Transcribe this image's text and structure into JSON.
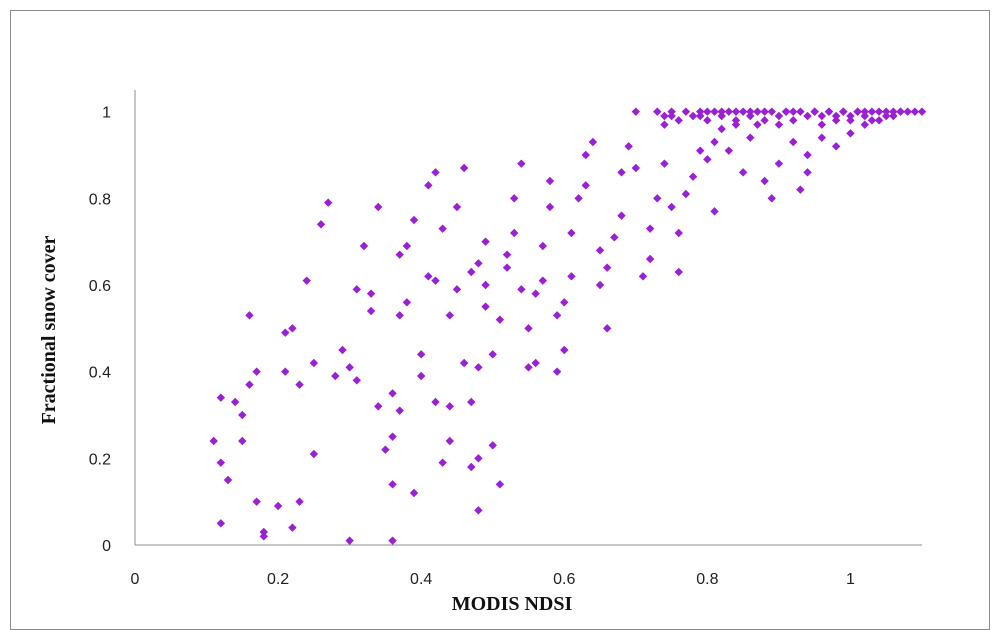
{
  "chart_data": {
    "type": "scatter",
    "xlabel": "MODIS NDSI",
    "ylabel": "Fractional  snow cover",
    "xlim": [
      0,
      1.1
    ],
    "ylim": [
      0,
      1.05
    ],
    "x_ticks": [
      "0",
      "0.2",
      "0.4",
      "0.6",
      "0.8",
      "1"
    ],
    "y_ticks": [
      "0",
      "0.2",
      "0.4",
      "0.6",
      "0.8",
      "1"
    ],
    "grid": false,
    "legend": "none",
    "marker_color": "#9b1fd4",
    "marker": "diamond",
    "points": [
      [
        0.11,
        0.24
      ],
      [
        0.12,
        0.05
      ],
      [
        0.12,
        0.19
      ],
      [
        0.13,
        0.15
      ],
      [
        0.12,
        0.34
      ],
      [
        0.14,
        0.33
      ],
      [
        0.15,
        0.24
      ],
      [
        0.15,
        0.3
      ],
      [
        0.16,
        0.37
      ],
      [
        0.17,
        0.4
      ],
      [
        0.16,
        0.53
      ],
      [
        0.17,
        0.1
      ],
      [
        0.18,
        0.03
      ],
      [
        0.18,
        0.02
      ],
      [
        0.2,
        0.09
      ],
      [
        0.21,
        0.4
      ],
      [
        0.21,
        0.49
      ],
      [
        0.22,
        0.5
      ],
      [
        0.23,
        0.37
      ],
      [
        0.23,
        0.1
      ],
      [
        0.22,
        0.04
      ],
      [
        0.24,
        0.61
      ],
      [
        0.25,
        0.21
      ],
      [
        0.25,
        0.42
      ],
      [
        0.26,
        0.74
      ],
      [
        0.27,
        0.79
      ],
      [
        0.28,
        0.39
      ],
      [
        0.29,
        0.45
      ],
      [
        0.3,
        0.41
      ],
      [
        0.31,
        0.38
      ],
      [
        0.31,
        0.59
      ],
      [
        0.3,
        0.01
      ],
      [
        0.32,
        0.69
      ],
      [
        0.33,
        0.54
      ],
      [
        0.33,
        0.58
      ],
      [
        0.34,
        0.78
      ],
      [
        0.34,
        0.32
      ],
      [
        0.35,
        0.22
      ],
      [
        0.36,
        0.01
      ],
      [
        0.36,
        0.14
      ],
      [
        0.36,
        0.25
      ],
      [
        0.37,
        0.31
      ],
      [
        0.36,
        0.35
      ],
      [
        0.37,
        0.53
      ],
      [
        0.37,
        0.67
      ],
      [
        0.38,
        0.69
      ],
      [
        0.38,
        0.56
      ],
      [
        0.39,
        0.75
      ],
      [
        0.39,
        0.12
      ],
      [
        0.4,
        0.44
      ],
      [
        0.4,
        0.39
      ],
      [
        0.41,
        0.62
      ],
      [
        0.41,
        0.83
      ],
      [
        0.42,
        0.61
      ],
      [
        0.42,
        0.86
      ],
      [
        0.43,
        0.73
      ],
      [
        0.42,
        0.33
      ],
      [
        0.43,
        0.19
      ],
      [
        0.44,
        0.32
      ],
      [
        0.44,
        0.24
      ],
      [
        0.44,
        0.53
      ],
      [
        0.45,
        0.59
      ],
      [
        0.45,
        0.78
      ],
      [
        0.46,
        0.87
      ],
      [
        0.46,
        0.42
      ],
      [
        0.47,
        0.33
      ],
      [
        0.47,
        0.18
      ],
      [
        0.48,
        0.08
      ],
      [
        0.48,
        0.2
      ],
      [
        0.48,
        0.41
      ],
      [
        0.47,
        0.63
      ],
      [
        0.48,
        0.65
      ],
      [
        0.49,
        0.6
      ],
      [
        0.49,
        0.7
      ],
      [
        0.49,
        0.55
      ],
      [
        0.5,
        0.44
      ],
      [
        0.5,
        0.23
      ],
      [
        0.51,
        0.14
      ],
      [
        0.51,
        0.52
      ],
      [
        0.52,
        0.64
      ],
      [
        0.52,
        0.67
      ],
      [
        0.53,
        0.72
      ],
      [
        0.53,
        0.8
      ],
      [
        0.54,
        0.88
      ],
      [
        0.54,
        0.59
      ],
      [
        0.55,
        0.5
      ],
      [
        0.55,
        0.41
      ],
      [
        0.56,
        0.42
      ],
      [
        0.56,
        0.58
      ],
      [
        0.57,
        0.61
      ],
      [
        0.57,
        0.69
      ],
      [
        0.58,
        0.78
      ],
      [
        0.58,
        0.84
      ],
      [
        0.59,
        0.53
      ],
      [
        0.59,
        0.4
      ],
      [
        0.6,
        0.45
      ],
      [
        0.6,
        0.56
      ],
      [
        0.61,
        0.62
      ],
      [
        0.61,
        0.72
      ],
      [
        0.62,
        0.8
      ],
      [
        0.63,
        0.83
      ],
      [
        0.63,
        0.9
      ],
      [
        0.64,
        0.93
      ],
      [
        0.65,
        0.68
      ],
      [
        0.65,
        0.6
      ],
      [
        0.66,
        0.5
      ],
      [
        0.66,
        0.64
      ],
      [
        0.67,
        0.71
      ],
      [
        0.68,
        0.76
      ],
      [
        0.68,
        0.86
      ],
      [
        0.69,
        0.92
      ],
      [
        0.7,
        1.0
      ],
      [
        0.7,
        0.87
      ],
      [
        0.71,
        0.62
      ],
      [
        0.72,
        0.66
      ],
      [
        0.72,
        0.73
      ],
      [
        0.73,
        0.8
      ],
      [
        0.74,
        0.88
      ],
      [
        0.74,
        0.97
      ],
      [
        0.75,
        0.99
      ],
      [
        0.75,
        0.78
      ],
      [
        0.76,
        0.63
      ],
      [
        0.76,
        0.72
      ],
      [
        0.77,
        0.81
      ],
      [
        0.78,
        0.85
      ],
      [
        0.79,
        0.91
      ],
      [
        0.79,
        0.99
      ],
      [
        0.8,
        1.0
      ],
      [
        0.8,
        0.89
      ],
      [
        0.81,
        0.77
      ],
      [
        0.81,
        0.93
      ],
      [
        0.82,
        0.96
      ],
      [
        0.82,
        1.0
      ],
      [
        0.83,
        0.91
      ],
      [
        0.84,
        0.98
      ],
      [
        0.84,
        1.0
      ],
      [
        0.85,
        0.86
      ],
      [
        0.86,
        0.94
      ],
      [
        0.86,
        1.0
      ],
      [
        0.87,
        0.97
      ],
      [
        0.88,
        1.0
      ],
      [
        0.88,
        0.84
      ],
      [
        0.89,
        0.8
      ],
      [
        0.9,
        0.88
      ],
      [
        0.9,
        0.97
      ],
      [
        0.91,
        1.0
      ],
      [
        0.92,
        0.93
      ],
      [
        0.92,
        1.0
      ],
      [
        0.93,
        0.82
      ],
      [
        0.94,
        0.86
      ],
      [
        0.94,
        0.9
      ],
      [
        0.95,
        1.0
      ],
      [
        0.96,
        0.94
      ],
      [
        0.96,
        0.99
      ],
      [
        0.97,
        1.0
      ],
      [
        0.98,
        0.92
      ],
      [
        0.98,
        0.98
      ],
      [
        0.99,
        1.0
      ],
      [
        1.0,
        0.95
      ],
      [
        1.0,
        0.99
      ],
      [
        1.01,
        1.0
      ],
      [
        1.02,
        0.97
      ],
      [
        1.02,
        1.0
      ],
      [
        1.03,
        0.98
      ],
      [
        1.04,
        1.0
      ],
      [
        1.05,
        0.99
      ],
      [
        1.06,
        1.0
      ],
      [
        1.07,
        1.0
      ],
      [
        0.73,
        1.0
      ],
      [
        0.74,
        0.99
      ],
      [
        0.75,
        1.0
      ],
      [
        0.76,
        0.98
      ],
      [
        0.77,
        1.0
      ],
      [
        0.78,
        0.99
      ],
      [
        0.79,
        1.0
      ],
      [
        0.8,
        0.98
      ],
      [
        0.81,
        1.0
      ],
      [
        0.82,
        0.99
      ],
      [
        0.83,
        1.0
      ],
      [
        0.84,
        0.97
      ],
      [
        0.85,
        1.0
      ],
      [
        0.86,
        0.99
      ],
      [
        0.87,
        1.0
      ],
      [
        0.88,
        0.98
      ],
      [
        0.89,
        1.0
      ],
      [
        0.9,
        0.99
      ],
      [
        0.91,
        1.0
      ],
      [
        0.92,
        0.98
      ],
      [
        0.93,
        1.0
      ],
      [
        0.94,
        0.99
      ],
      [
        0.95,
        1.0
      ],
      [
        0.96,
        0.97
      ],
      [
        0.97,
        1.0
      ],
      [
        0.98,
        0.99
      ],
      [
        0.99,
        1.0
      ],
      [
        1.0,
        0.98
      ],
      [
        1.01,
        1.0
      ],
      [
        1.02,
        0.99
      ],
      [
        1.03,
        1.0
      ],
      [
        1.04,
        0.98
      ],
      [
        1.05,
        1.0
      ],
      [
        1.06,
        0.99
      ],
      [
        1.07,
        1.0
      ],
      [
        1.08,
        1.0
      ],
      [
        1.09,
        1.0
      ],
      [
        1.1,
        1.0
      ]
    ]
  }
}
